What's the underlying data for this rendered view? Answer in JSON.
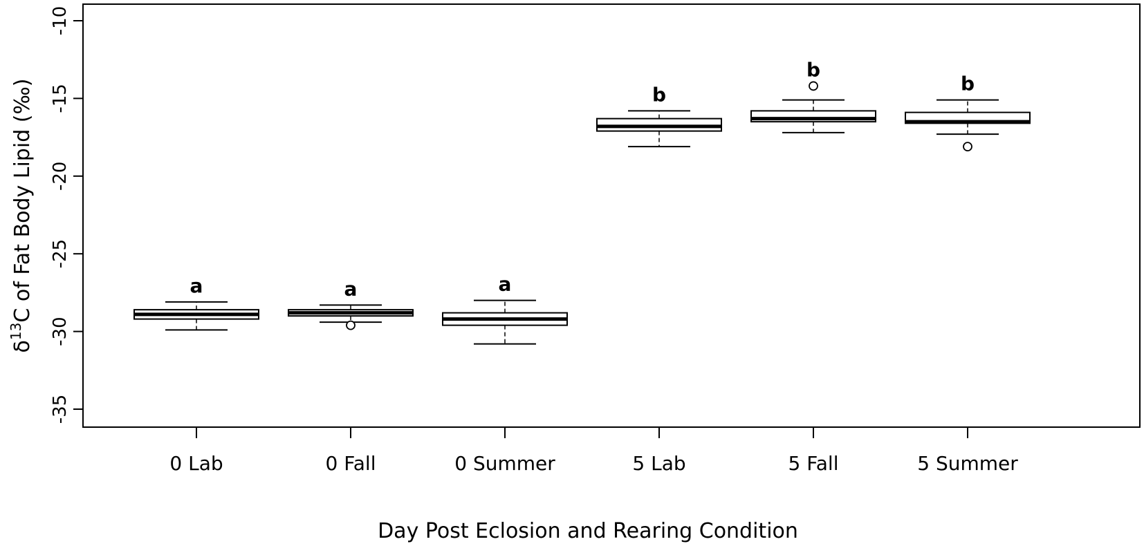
{
  "chart_data": {
    "type": "box",
    "title": "",
    "xlabel": "Day Post Eclosion and Rearing Condition",
    "ylabel_prefix": "δ",
    "ylabel_sup": "13",
    "ylabel_suffix": "C of Fat Body Lipid (‰)",
    "ylim": [
      -35.5,
      -9.5
    ],
    "yticks": [
      -10,
      -15,
      -20,
      -25,
      -30,
      -35
    ],
    "ytick_labels": [
      "-10",
      "-15",
      "-20",
      "-25",
      "-30",
      "-35"
    ],
    "categories": [
      "0 Lab",
      "0 Fall",
      "0 Summer",
      "5 Lab",
      "5 Fall",
      "5 Summer"
    ],
    "boxes": [
      {
        "category": "0 Lab",
        "whisker_low": -29.9,
        "q1": -29.2,
        "median": -28.9,
        "q3": -28.6,
        "whisker_high": -28.1,
        "outliers": [],
        "letter": "a"
      },
      {
        "category": "0 Fall",
        "whisker_low": -29.4,
        "q1": -29.0,
        "median": -28.8,
        "q3": -28.6,
        "whisker_high": -28.3,
        "outliers": [
          -29.6
        ],
        "letter": "a"
      },
      {
        "category": "0 Summer",
        "whisker_low": -30.8,
        "q1": -29.6,
        "median": -29.2,
        "q3": -28.8,
        "whisker_high": -28.0,
        "outliers": [],
        "letter": "a"
      },
      {
        "category": "5 Lab",
        "whisker_low": -18.1,
        "q1": -17.1,
        "median": -16.8,
        "q3": -16.3,
        "whisker_high": -15.8,
        "outliers": [],
        "letter": "b"
      },
      {
        "category": "5 Fall",
        "whisker_low": -17.2,
        "q1": -16.5,
        "median": -16.3,
        "q3": -15.8,
        "whisker_high": -15.1,
        "outliers": [
          -14.2
        ],
        "letter": "b"
      },
      {
        "category": "5 Summer",
        "whisker_low": -17.3,
        "q1": -16.6,
        "median": -16.5,
        "q3": -15.9,
        "whisker_high": -15.1,
        "outliers": [
          -18.1
        ],
        "letter": "b"
      }
    ]
  }
}
